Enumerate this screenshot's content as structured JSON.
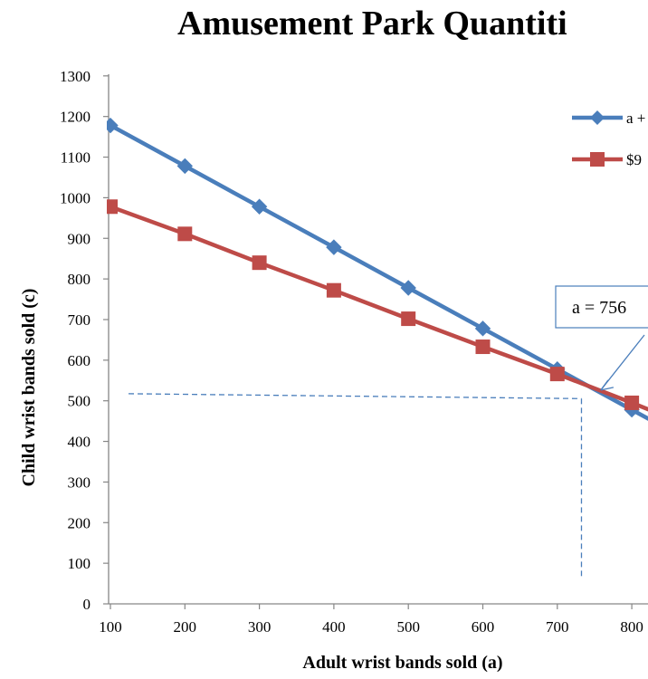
{
  "chart_data": {
    "type": "line",
    "title": "Amusement Park Quantiti",
    "xlabel": "Adult wrist bands sold (a)",
    "ylabel": "Child wrist bands sold (c)",
    "x_ticks": [
      "100",
      "200",
      "300",
      "400",
      "500",
      "600",
      "700",
      "800"
    ],
    "y_ticks": [
      "0",
      "100",
      "200",
      "300",
      "400",
      "500",
      "600",
      "700",
      "800",
      "900",
      "1000",
      "1100",
      "1200",
      "1300"
    ],
    "xlim": [
      100,
      830
    ],
    "ylim": [
      0,
      1300
    ],
    "grid": false,
    "legend_position": "top-right",
    "series": [
      {
        "name": "a +",
        "color": "#4a7ebb",
        "marker": "diamond",
        "x": [
          100,
          200,
          300,
          400,
          500,
          600,
          700,
          800,
          830
        ],
        "y": [
          1178,
          1078,
          978,
          878,
          778,
          678,
          578,
          478,
          448
        ]
      },
      {
        "name": "$9",
        "color": "#be4b48",
        "marker": "square",
        "x": [
          100,
          200,
          300,
          400,
          500,
          600,
          700,
          800,
          830
        ],
        "y": [
          978,
          911,
          840,
          772,
          702,
          633,
          566,
          495,
          473
        ]
      }
    ],
    "annotation": {
      "text": "a = 756",
      "target_x": 756,
      "target_y": 522,
      "guide_x": 730,
      "guide_y": 512
    }
  }
}
